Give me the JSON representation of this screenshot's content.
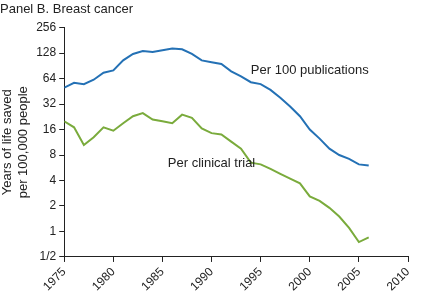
{
  "chart_data": {
    "type": "line",
    "title": "Panel B. Breast cancer",
    "y_label": [
      "Years of life saved",
      "per 100,000 people"
    ],
    "x": [
      1975,
      1976,
      1977,
      1978,
      1979,
      1980,
      1981,
      1982,
      1983,
      1984,
      1985,
      1986,
      1987,
      1988,
      1989,
      1990,
      1991,
      1992,
      1993,
      1994,
      1995,
      1996,
      1997,
      1998,
      1999,
      2000,
      2001,
      2002,
      2003,
      2004,
      2005,
      2006
    ],
    "series": [
      {
        "name": "Per 100 publications",
        "color": "#2471b5",
        "values": [
          50,
          57,
          55,
          62,
          75,
          80,
          105,
          125,
          135,
          132,
          138,
          145,
          142,
          125,
          105,
          100,
          95,
          78,
          68,
          58,
          55,
          47,
          38,
          30,
          23,
          16,
          12.5,
          9.5,
          8,
          7.2,
          6.2,
          6
        ]
      },
      {
        "name": "Per clinical trial",
        "color": "#7aab3c",
        "values": [
          20,
          17,
          10.5,
          13,
          17,
          15.5,
          19,
          23,
          25,
          21,
          20,
          19,
          24,
          22,
          16.5,
          14.5,
          14,
          11.5,
          9.5,
          6.5,
          6.2,
          5.5,
          4.8,
          4.2,
          3.7,
          2.6,
          2.3,
          1.9,
          1.5,
          1.1,
          0.75,
          0.85
        ]
      }
    ],
    "xlim": [
      1975,
      2010
    ],
    "xticks": [
      1975,
      1980,
      1985,
      1990,
      1995,
      2000,
      2005,
      2010
    ],
    "ylim": [
      0.5,
      256
    ],
    "yticks": [
      {
        "value": 0.5,
        "label": "1/2"
      },
      1,
      2,
      4,
      8,
      16,
      32,
      64,
      128,
      256
    ],
    "log": "y",
    "grid": false
  }
}
